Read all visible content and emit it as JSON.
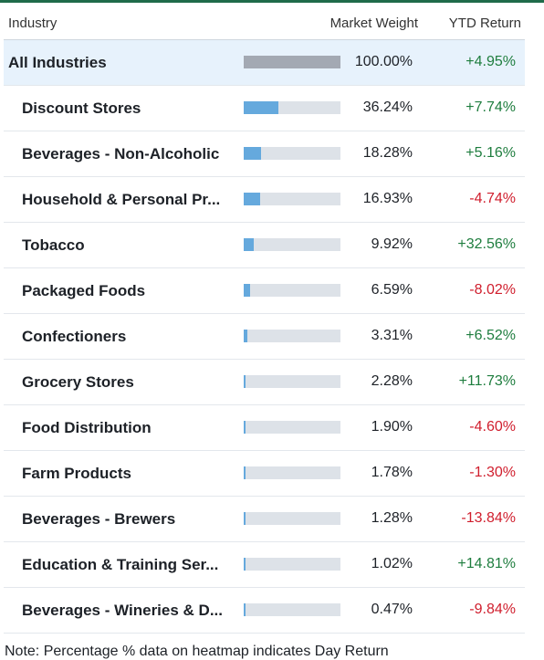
{
  "header": {
    "industry": "Industry",
    "market_weight": "Market Weight",
    "ytd_return": "YTD Return"
  },
  "colors": {
    "positive": "#1e7d3e",
    "negative": "#d01e2d",
    "bar_fill": "#65a9dd",
    "bar_track": "#dde2e8",
    "total_bar": "#a3a9b3",
    "highlight_row": "#e7f2fc"
  },
  "rows": [
    {
      "name": "All Industries",
      "weight": "100.00%",
      "weight_value": 100.0,
      "ytd": "+4.95%",
      "positive": true
    },
    {
      "name": "Discount Stores",
      "weight": "36.24%",
      "weight_value": 36.24,
      "ytd": "+7.74%",
      "positive": true
    },
    {
      "name": "Beverages - Non-Alcoholic",
      "weight": "18.28%",
      "weight_value": 18.28,
      "ytd": "+5.16%",
      "positive": true
    },
    {
      "name": "Household & Personal Pr...",
      "weight": "16.93%",
      "weight_value": 16.93,
      "ytd": "-4.74%",
      "positive": false
    },
    {
      "name": "Tobacco",
      "weight": "9.92%",
      "weight_value": 9.92,
      "ytd": "+32.56%",
      "positive": true
    },
    {
      "name": "Packaged Foods",
      "weight": "6.59%",
      "weight_value": 6.59,
      "ytd": "-8.02%",
      "positive": false
    },
    {
      "name": "Confectioners",
      "weight": "3.31%",
      "weight_value": 3.31,
      "ytd": "+6.52%",
      "positive": true
    },
    {
      "name": "Grocery Stores",
      "weight": "2.28%",
      "weight_value": 2.28,
      "ytd": "+11.73%",
      "positive": true
    },
    {
      "name": "Food Distribution",
      "weight": "1.90%",
      "weight_value": 1.9,
      "ytd": "-4.60%",
      "positive": false
    },
    {
      "name": "Farm Products",
      "weight": "1.78%",
      "weight_value": 1.78,
      "ytd": "-1.30%",
      "positive": false
    },
    {
      "name": "Beverages - Brewers",
      "weight": "1.28%",
      "weight_value": 1.28,
      "ytd": "-13.84%",
      "positive": false
    },
    {
      "name": "Education & Training Ser...",
      "weight": "1.02%",
      "weight_value": 1.02,
      "ytd": "+14.81%",
      "positive": true
    },
    {
      "name": "Beverages - Wineries & D...",
      "weight": "0.47%",
      "weight_value": 0.47,
      "ytd": "-9.84%",
      "positive": false
    }
  ],
  "note": "Note: Percentage % data on heatmap indicates Day Return"
}
